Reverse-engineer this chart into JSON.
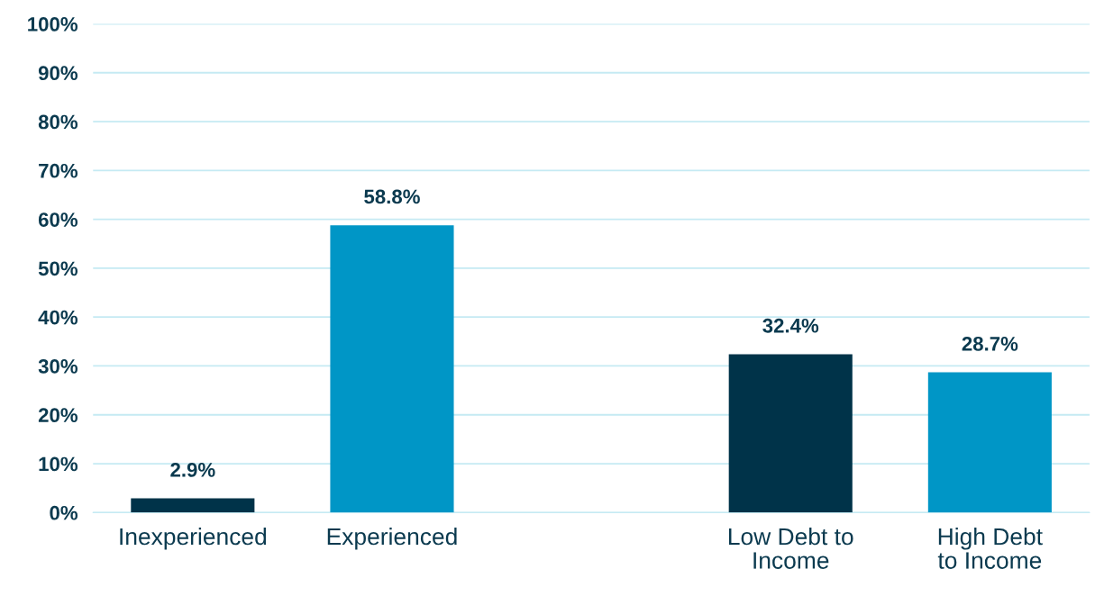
{
  "chart_data": {
    "type": "bar",
    "categories": [
      "Inexperienced",
      "Experienced",
      null,
      "Low Debt to\nIncome",
      "High Debt\nto Income"
    ],
    "values": [
      2.9,
      58.8,
      null,
      32.4,
      28.7
    ],
    "colors": [
      "#003349",
      "#0096c6",
      "#0096c6",
      "#003349",
      "#0096c6"
    ],
    "value_labels": [
      "2.9%",
      "58.8%",
      null,
      "32.4%",
      "28.7%"
    ],
    "ylim": [
      0,
      100
    ],
    "yticks": [
      {
        "value": 0,
        "label": "0%"
      },
      {
        "value": 10,
        "label": "10%"
      },
      {
        "value": 20,
        "label": "20%"
      },
      {
        "value": 30,
        "label": "30%"
      },
      {
        "value": 40,
        "label": "40%"
      },
      {
        "value": 50,
        "label": "50%"
      },
      {
        "value": 60,
        "label": "60%"
      },
      {
        "value": 70,
        "label": "70%"
      },
      {
        "value": 80,
        "label": "80%"
      },
      {
        "value": 90,
        "label": "90%"
      },
      {
        "value": 100,
        "label": "100%"
      }
    ],
    "grid": "y",
    "legend": false
  }
}
